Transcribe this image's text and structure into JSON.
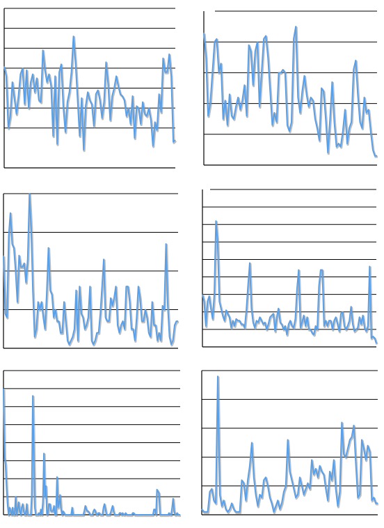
{
  "colors": {
    "series": "#5aa0e8",
    "grid": "#000000",
    "background": "#ffffff"
  },
  "chart_data": [
    {
      "type": "line",
      "grid": true,
      "ylim": [
        0,
        8
      ],
      "gridlines": [
        2,
        3,
        4,
        5,
        6,
        7,
        8
      ],
      "top_line": "solid",
      "series": [
        {
          "values": [
            5.1,
            4.6,
            2.0,
            2.6,
            4.3,
            3.5,
            2.7,
            3.6,
            4.7,
            5.0,
            3.2,
            4.9,
            3.0,
            4.3,
            4.7,
            3.8,
            4.5,
            3.4,
            3.3,
            5.9,
            4.9,
            4.3,
            4.7,
            4.1,
            1.6,
            4.6,
            1.2,
            4.8,
            5.2,
            3.1,
            1.8,
            3.3,
            3.8,
            4.8,
            6.6,
            5.3,
            3.5,
            1.6,
            3.5,
            0.9,
            3.1,
            3.8,
            3.4,
            3.2,
            2.1,
            3.7,
            3.9,
            3.4,
            2.5,
            3.3,
            5.3,
            4.2,
            2.4,
            3.6,
            4.0,
            4.6,
            4.1,
            3.7,
            3.6,
            3.4,
            2.6,
            3.0,
            2.2,
            3.6,
            1.5,
            3.1,
            3.0,
            2.2,
            3.3,
            2.7,
            2.6,
            3.0,
            2.4,
            1.1,
            2.3,
            1.9,
            3.7,
            2.8,
            5.5,
            4.8,
            4.8,
            5.7,
            4.6,
            1.3,
            1.4
          ]
        }
      ]
    },
    {
      "type": "line",
      "grid": true,
      "ylim": [
        0,
        5
      ],
      "gridlines": [
        1,
        2,
        3,
        4
      ],
      "top_line": "solid",
      "series": [
        {
          "values": [
            4.3,
            3.5,
            1.6,
            2.0,
            3.0,
            4.0,
            4.1,
            3.0,
            3.3,
            1.5,
            2.1,
            1.3,
            2.3,
            1.6,
            1.5,
            1.9,
            2.2,
            1.8,
            2.1,
            2.6,
            1.6,
            3.9,
            3.7,
            2.6,
            3.7,
            4.0,
            1.9,
            3.0,
            4.1,
            4.2,
            3.5,
            2.4,
            1.3,
            1.7,
            1.4,
            3.0,
            3.0,
            3.1,
            3.0,
            1.3,
            1.1,
            1.4,
            4.1,
            4.5,
            2.2,
            1.7,
            2.4,
            2.9,
            2.3,
            1.9,
            2.2,
            2.1,
            1.5,
            1.2,
            0.8,
            2.5,
            2.4,
            1.5,
            0.4,
            1.5,
            2.7,
            1.4,
            0.6,
            0.7,
            0.6,
            1.1,
            1.8,
            0.7,
            1.2,
            1.4,
            3.1,
            3.4,
            2.3,
            1.4,
            1.2,
            2.2,
            1.7,
            1.8,
            1.1,
            0.5,
            0.3,
            0.3
          ]
        }
      ]
    },
    {
      "type": "line",
      "grid": true,
      "ylim": [
        0,
        4
      ],
      "gridlines": [
        1,
        2,
        3,
        4
      ],
      "top_line": "none",
      "series": [
        {
          "values": [
            2.4,
            0.9,
            0.8,
            2.9,
            3.5,
            2.7,
            2.6,
            2.0,
            1.2,
            2.4,
            2.1,
            2.1,
            2.2,
            1.7,
            2.3,
            4.1,
            3.1,
            1.5,
            0.3,
            0.5,
            1.2,
            1.0,
            1.2,
            0.8,
            0.5,
            1.4,
            2.6,
            1.5,
            1.4,
            0.8,
            1.0,
            0.7,
            0.7,
            0.4,
            0.4,
            1.2,
            0.7,
            0.2,
            0.1,
            0.2,
            0.3,
            0.5,
            1.5,
            0.2,
            1.6,
            0.9,
            0.8,
            0.5,
            0.6,
            0.8,
            1.6,
            0.2,
            0.1,
            0.2,
            0.4,
            0.4,
            0.9,
            1.6,
            2.3,
            0.8,
            0.7,
            0.7,
            1.3,
            1.1,
            1.3,
            1.6,
            0.6,
            0.4,
            0.6,
            0.7,
            0.5,
            1.6,
            1.6,
            1.2,
            0.5,
            0.5,
            0.2,
            0.8,
            1.6,
            1.3,
            0.7,
            0.7,
            1.0,
            0.8,
            0.4,
            0.3,
            1.2,
            0.6,
            0.6,
            0.2,
            0.4,
            0.2,
            1.1,
            1.0,
            2.7,
            1.1,
            0.3,
            0.1,
            0.2,
            0.6,
            0.7,
            0.7
          ]
        }
      ]
    },
    {
      "type": "line",
      "grid": true,
      "ylim": [
        0,
        9
      ],
      "gridlines": [
        1,
        2,
        3,
        4,
        5,
        6,
        7,
        8
      ],
      "top_line": "solid",
      "series": [
        {
          "values": [
            3.0,
            2.6,
            1.2,
            2.6,
            2.9,
            2.2,
            1.6,
            3.0,
            7.2,
            6.0,
            2.6,
            2.2,
            1.8,
            1.5,
            2.1,
            1.9,
            1.7,
            1.1,
            1.5,
            1.2,
            1.6,
            1.5,
            1.5,
            1.3,
            1.3,
            1.1,
            2.1,
            3.5,
            4.8,
            2.2,
            1.4,
            1.1,
            1.5,
            1.4,
            1.7,
            1.5,
            1.3,
            1.4,
            1.0,
            1.3,
            1.7,
            1.8,
            1.9,
            0.9,
            1.7,
            2.2,
            1.4,
            1.3,
            1.0,
            1.2,
            0.7,
            1.3,
            1.5,
            1.2,
            1.1,
            1.6,
            3.3,
            4.4,
            1.1,
            1.4,
            1.8,
            1.2,
            1.7,
            1.0,
            1.0,
            0.8,
            0.7,
            1.2,
            1.0,
            3.5,
            4.4,
            4.4,
            1.2,
            1.5,
            1.2,
            1.5,
            1.5,
            1.0,
            1.5,
            1.7,
            1.3,
            0.9,
            1.9,
            2.0,
            1.2,
            1.0,
            1.2,
            1.5,
            2.3,
            1.3,
            0.9,
            1.0,
            1.1,
            1.7,
            1.3,
            1.8,
            1.1,
            0.9,
            1.2,
            4.6,
            0.5,
            0.6,
            0.5,
            0.2
          ]
        }
      ]
    },
    {
      "type": "line",
      "grid": true,
      "ylim": [
        0,
        8
      ],
      "gridlines": [
        1,
        2,
        3,
        4,
        5,
        6,
        7
      ],
      "top_line": "solid",
      "series": [
        {
          "values": [
            7.0,
            3.2,
            2.8,
            1.5,
            0.6,
            0.0,
            0.4,
            0.2,
            0.0,
            0.4,
            0.0,
            0.0,
            1.0,
            0.0,
            0.3,
            0.7,
            0.2,
            0.0,
            0.4,
            0.6,
            0.2,
            0.0,
            0.0,
            0.6,
            0.0,
            0.0,
            0.0,
            0.0,
            1.1,
            6.6,
            3.6,
            0.4,
            0.0,
            0.0,
            0.0,
            0.1,
            0.0,
            0.3,
            0.0,
            0.7,
            3.4,
            1.0,
            1.6,
            0.0,
            0.1,
            0.6,
            0.6,
            0.2,
            0.2,
            0.2,
            0.5,
            0.0,
            0.0,
            2.1,
            0.4,
            0.6,
            1.1,
            0.3,
            0.0,
            0.2,
            0.1,
            0.0,
            0.0,
            0.0,
            0.0,
            0.0,
            0.0,
            0.0,
            0.4,
            0.0,
            0.0,
            0.0,
            0.0,
            0.0,
            0.0,
            0.0,
            0.0,
            0.0,
            0.0,
            0.0,
            0.2,
            0.5,
            0.3,
            0.2,
            0.2,
            0.1,
            0.0,
            0.0,
            0.0,
            0.2,
            0.3,
            0.2,
            0.0,
            0.0,
            0.1,
            0.1,
            0.0,
            0.0,
            0.0,
            0.4,
            0.6,
            0.3,
            0.0,
            0.0,
            0.0,
            0.0,
            0.1,
            0.3,
            0.5,
            0.2,
            0.0,
            0.0,
            0.0,
            0.0,
            0.0,
            0.1,
            0.1,
            0.0,
            0.1,
            0.0,
            0.0,
            0.1,
            0.0,
            0.0,
            0.0,
            0.0,
            0.0,
            0.0,
            0.1,
            0.1,
            0.0,
            0.0,
            0.0,
            0.0,
            0.0,
            0.0,
            0.0,
            0.0,
            0.0,
            0.0,
            0.0,
            0.0,
            0.0,
            0.0,
            0.0,
            0.0,
            0.0,
            0.0,
            0.0,
            0.3,
            0.3,
            0.0,
            1.4,
            1.3,
            1.2,
            0.0,
            0.0,
            0.0,
            0.0,
            0.0,
            0.0,
            0.0,
            0.0,
            0.0,
            0.1,
            0.0,
            0.0,
            0.4,
            0.9,
            0.2,
            0.0,
            0.0,
            0.1,
            0.0,
            0.0,
            0.0
          ]
        }
      ]
    },
    {
      "type": "line",
      "grid": true,
      "ylim": [
        0,
        5
      ],
      "gridlines": [
        1,
        2,
        3,
        4,
        5
      ],
      "top_line": "dotted",
      "series": [
        {
          "values": [
            0.2,
            0.1,
            0.1,
            0.1,
            0.8,
            0.9,
            0.5,
            0.4,
            4.8,
            0.7,
            0.3,
            0.5,
            0.2,
            0.1,
            0.2,
            0.4,
            0.2,
            0.1,
            0.1,
            0.1,
            1.2,
            1.1,
            0.5,
            1.2,
            1.7,
            2.5,
            1.3,
            0.7,
            0.3,
            0.7,
            0.6,
            1.2,
            1.3,
            1.0,
            0.6,
            0.4,
            0.1,
            0.3,
            0.5,
            0.2,
            0.4,
            0.8,
            1.0,
            2.6,
            1.5,
            1.2,
            0.9,
            0.6,
            0.7,
            1.3,
            1.0,
            0.7,
            0.9,
            1.1,
            0.9,
            1.9,
            1.4,
            1.6,
            1.3,
            1.7,
            1.5,
            1.4,
            0.9,
            0.5,
            1.5,
            1.2,
            1.9,
            0.9,
            0.3,
            0.8,
            3.2,
            2.1,
            2.0,
            2.3,
            2.6,
            2.7,
            3.1,
            1.8,
            0.6,
            0.7,
            2.6,
            2.3,
            1.9,
            2.4,
            2.2,
            0.5,
            0.6,
            0.4,
            0.4
          ]
        }
      ]
    }
  ]
}
